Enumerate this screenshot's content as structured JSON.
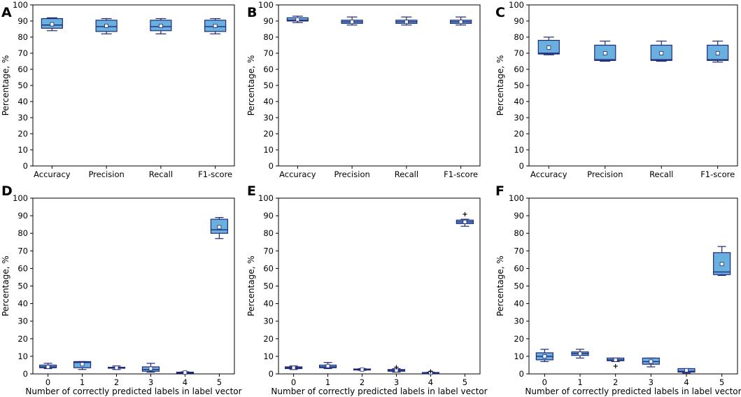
{
  "figure_title": "",
  "chart_data": [
    {
      "type": "box",
      "panel": "A",
      "title": "",
      "xlabel": "",
      "ylabel": "Percentage, %",
      "ylim": [
        0,
        100
      ],
      "yticks": [
        "0",
        "10",
        "20",
        "30",
        "40",
        "50",
        "60",
        "70",
        "80",
        "90",
        "100"
      ],
      "categories": [
        "Accuracy",
        "Precision",
        "Recall",
        "F1-score"
      ],
      "boxes": [
        {
          "whislo": 84,
          "q1": 85.5,
          "med": 87.5,
          "q3": 91.5,
          "whishi": 92,
          "mean": 88,
          "fliers": []
        },
        {
          "whislo": 82,
          "q1": 83.5,
          "med": 86.5,
          "q3": 90.5,
          "whishi": 91.5,
          "mean": 87,
          "fliers": []
        },
        {
          "whislo": 82,
          "q1": 84,
          "med": 86.5,
          "q3": 90.5,
          "whishi": 91.5,
          "mean": 87,
          "fliers": []
        },
        {
          "whislo": 82,
          "q1": 83.5,
          "med": 86.5,
          "q3": 90.5,
          "whishi": 91.5,
          "mean": 87,
          "fliers": []
        }
      ]
    },
    {
      "type": "box",
      "panel": "B",
      "title": "",
      "xlabel": "",
      "ylabel": "Percentage, %",
      "ylim": [
        0,
        100
      ],
      "yticks": [
        "0",
        "10",
        "20",
        "30",
        "40",
        "50",
        "60",
        "70",
        "80",
        "90",
        "100"
      ],
      "categories": [
        "Accuracy",
        "Precision",
        "Recall",
        "F1-score"
      ],
      "boxes": [
        {
          "whislo": 89,
          "q1": 90,
          "med": 90.5,
          "q3": 92,
          "whishi": 93,
          "mean": 91,
          "fliers": []
        },
        {
          "whislo": 87.5,
          "q1": 88.5,
          "med": 89.5,
          "q3": 90.5,
          "whishi": 92.5,
          "mean": 89.5,
          "fliers": []
        },
        {
          "whislo": 87.5,
          "q1": 88.5,
          "med": 89.5,
          "q3": 90.5,
          "whishi": 92.5,
          "mean": 89.5,
          "fliers": []
        },
        {
          "whislo": 87.5,
          "q1": 88.5,
          "med": 89.5,
          "q3": 90.5,
          "whishi": 92.5,
          "mean": 89.5,
          "fliers": []
        }
      ]
    },
    {
      "type": "box",
      "panel": "C",
      "title": "",
      "xlabel": "",
      "ylabel": "Percentage, %",
      "ylim": [
        0,
        100
      ],
      "yticks": [
        "0",
        "10",
        "20",
        "30",
        "40",
        "50",
        "60",
        "70",
        "80",
        "90",
        "100"
      ],
      "categories": [
        "Accuracy",
        "Precision",
        "Recall",
        "F1-score"
      ],
      "boxes": [
        {
          "whislo": 69,
          "q1": 69.5,
          "med": 70,
          "q3": 78,
          "whishi": 80,
          "mean": 73.5,
          "fliers": []
        },
        {
          "whislo": 65,
          "q1": 65.5,
          "med": 66,
          "q3": 75,
          "whishi": 77.5,
          "mean": 70,
          "fliers": []
        },
        {
          "whislo": 65,
          "q1": 65.5,
          "med": 66,
          "q3": 75,
          "whishi": 77.5,
          "mean": 70,
          "fliers": []
        },
        {
          "whislo": 64.5,
          "q1": 65.5,
          "med": 66,
          "q3": 75,
          "whishi": 77.5,
          "mean": 70,
          "fliers": []
        }
      ]
    },
    {
      "type": "box",
      "panel": "D",
      "title": "",
      "xlabel": "Number of correctly predicted labels in label vector",
      "ylabel": "Percentage, %",
      "ylim": [
        0,
        100
      ],
      "yticks": [
        "0",
        "10",
        "20",
        "30",
        "40",
        "50",
        "60",
        "70",
        "80",
        "90",
        "100"
      ],
      "categories": [
        "0",
        "1",
        "2",
        "3",
        "4",
        "5"
      ],
      "boxes": [
        {
          "whislo": 3,
          "q1": 3.5,
          "med": 4,
          "q3": 5,
          "whishi": 6,
          "mean": 4,
          "fliers": []
        },
        {
          "whislo": 2.5,
          "q1": 3.5,
          "med": 6.5,
          "q3": 7,
          "whishi": 7,
          "mean": 5.5,
          "fliers": []
        },
        {
          "whislo": 2.5,
          "q1": 3.2,
          "med": 3.5,
          "q3": 3.8,
          "whishi": 4.5,
          "mean": 3.5,
          "fliers": []
        },
        {
          "whislo": 1,
          "q1": 1.5,
          "med": 2.5,
          "q3": 4,
          "whishi": 6,
          "mean": 3,
          "fliers": []
        },
        {
          "whislo": 0.3,
          "q1": 0.6,
          "med": 0.8,
          "q3": 1,
          "whishi": 1.2,
          "mean": 0.8,
          "fliers": []
        },
        {
          "whislo": 77,
          "q1": 80,
          "med": 82,
          "q3": 88,
          "whishi": 89,
          "mean": 83.5,
          "fliers": []
        }
      ]
    },
    {
      "type": "box",
      "panel": "E",
      "title": "",
      "xlabel": "Number of correctly predicted labels in label vector",
      "ylabel": "Percentage, %",
      "ylim": [
        0,
        100
      ],
      "yticks": [
        "0",
        "10",
        "20",
        "30",
        "40",
        "50",
        "60",
        "70",
        "80",
        "90",
        "100"
      ],
      "categories": [
        "0",
        "1",
        "2",
        "3",
        "4",
        "5"
      ],
      "boxes": [
        {
          "whislo": 2.5,
          "q1": 3,
          "med": 3.5,
          "q3": 4,
          "whishi": 4.5,
          "mean": 3.5,
          "fliers": []
        },
        {
          "whislo": 3,
          "q1": 3.5,
          "med": 4,
          "q3": 5,
          "whishi": 6.5,
          "mean": 4.5,
          "fliers": []
        },
        {
          "whislo": 2,
          "q1": 2.2,
          "med": 2.5,
          "q3": 2.8,
          "whishi": 3,
          "mean": 2.5,
          "fliers": []
        },
        {
          "whislo": 1,
          "q1": 1.5,
          "med": 2,
          "q3": 2.5,
          "whishi": 3,
          "mean": 2,
          "fliers": [
            4
          ]
        },
        {
          "whislo": 0.2,
          "q1": 0.4,
          "med": 0.6,
          "q3": 0.8,
          "whishi": 1,
          "mean": 0.6,
          "fliers": [
            1.5
          ]
        },
        {
          "whislo": 84,
          "q1": 85.5,
          "med": 86.5,
          "q3": 87.5,
          "whishi": 88,
          "mean": 86.5,
          "fliers": [
            91
          ]
        }
      ]
    },
    {
      "type": "box",
      "panel": "F",
      "title": "",
      "xlabel": "Number of correctly predicted labels in label vector",
      "ylabel": "Percentage, %",
      "ylim": [
        0,
        100
      ],
      "yticks": [
        "0",
        "10",
        "20",
        "30",
        "40",
        "50",
        "60",
        "70",
        "80",
        "90",
        "100"
      ],
      "categories": [
        "0",
        "1",
        "2",
        "3",
        "4",
        "5"
      ],
      "boxes": [
        {
          "whislo": 7,
          "q1": 8,
          "med": 10,
          "q3": 12,
          "whishi": 14,
          "mean": 10,
          "fliers": []
        },
        {
          "whislo": 9,
          "q1": 10.5,
          "med": 11.5,
          "q3": 12.5,
          "whishi": 14,
          "mean": 11.5,
          "fliers": []
        },
        {
          "whislo": 7,
          "q1": 7.5,
          "med": 8,
          "q3": 9,
          "whishi": 9,
          "mean": 8,
          "fliers": [
            4.5
          ]
        },
        {
          "whislo": 4,
          "q1": 5.5,
          "med": 7,
          "q3": 9,
          "whishi": 9,
          "mean": 7,
          "fliers": []
        },
        {
          "whislo": 0.5,
          "q1": 1,
          "med": 1.5,
          "q3": 3,
          "whishi": 3,
          "mean": 2,
          "fliers": []
        },
        {
          "whislo": 56,
          "q1": 56.5,
          "med": 58,
          "q3": 69,
          "whishi": 72.5,
          "mean": 62.5,
          "fliers": []
        }
      ]
    }
  ],
  "colors": {
    "box_fill": "#6ab0de",
    "box_edge": "#1f2a7a",
    "mean_marker": "#ffffff"
  }
}
